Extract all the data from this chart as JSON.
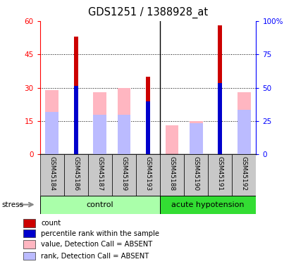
{
  "title": "GDS1251 / 1388928_at",
  "samples": [
    "GSM45184",
    "GSM45186",
    "GSM45187",
    "GSM45189",
    "GSM45193",
    "GSM45188",
    "GSM45190",
    "GSM45191",
    "GSM45192"
  ],
  "count_values": [
    0,
    53,
    0,
    0,
    35,
    0,
    0,
    58,
    0
  ],
  "rank_values": [
    0,
    31,
    0,
    0,
    24,
    0,
    0,
    32,
    0
  ],
  "absent_value_values": [
    29,
    0,
    28,
    30,
    0,
    13,
    15,
    0,
    28
  ],
  "absent_rank_values": [
    19,
    0,
    18,
    18,
    0,
    0,
    14,
    0,
    20
  ],
  "ylim_left": [
    0,
    60
  ],
  "ylim_right": [
    0,
    100
  ],
  "yticks_left": [
    0,
    15,
    30,
    45,
    60
  ],
  "yticks_right": [
    0,
    25,
    50,
    75,
    100
  ],
  "ytick_labels_left": [
    "0",
    "15",
    "30",
    "45",
    "60"
  ],
  "ytick_labels_right": [
    "0",
    "25",
    "50",
    "75",
    "100%"
  ],
  "color_count": "#CC0000",
  "color_rank": "#0000CC",
  "color_absent_value": "#FFB6C1",
  "color_absent_rank": "#BBBBFF",
  "group_control_color": "#AAFFAA",
  "group_hypo_color": "#33DD33",
  "group_label_control": "control",
  "group_label_hypo": "acute hypotension",
  "legend_items": [
    "count",
    "percentile rank within the sample",
    "value, Detection Call = ABSENT",
    "rank, Detection Call = ABSENT"
  ],
  "stress_label": "stress",
  "n_control": 5,
  "n_total": 9,
  "grid_color": "#555555",
  "tick_gray_bg": "#C8C8C8"
}
